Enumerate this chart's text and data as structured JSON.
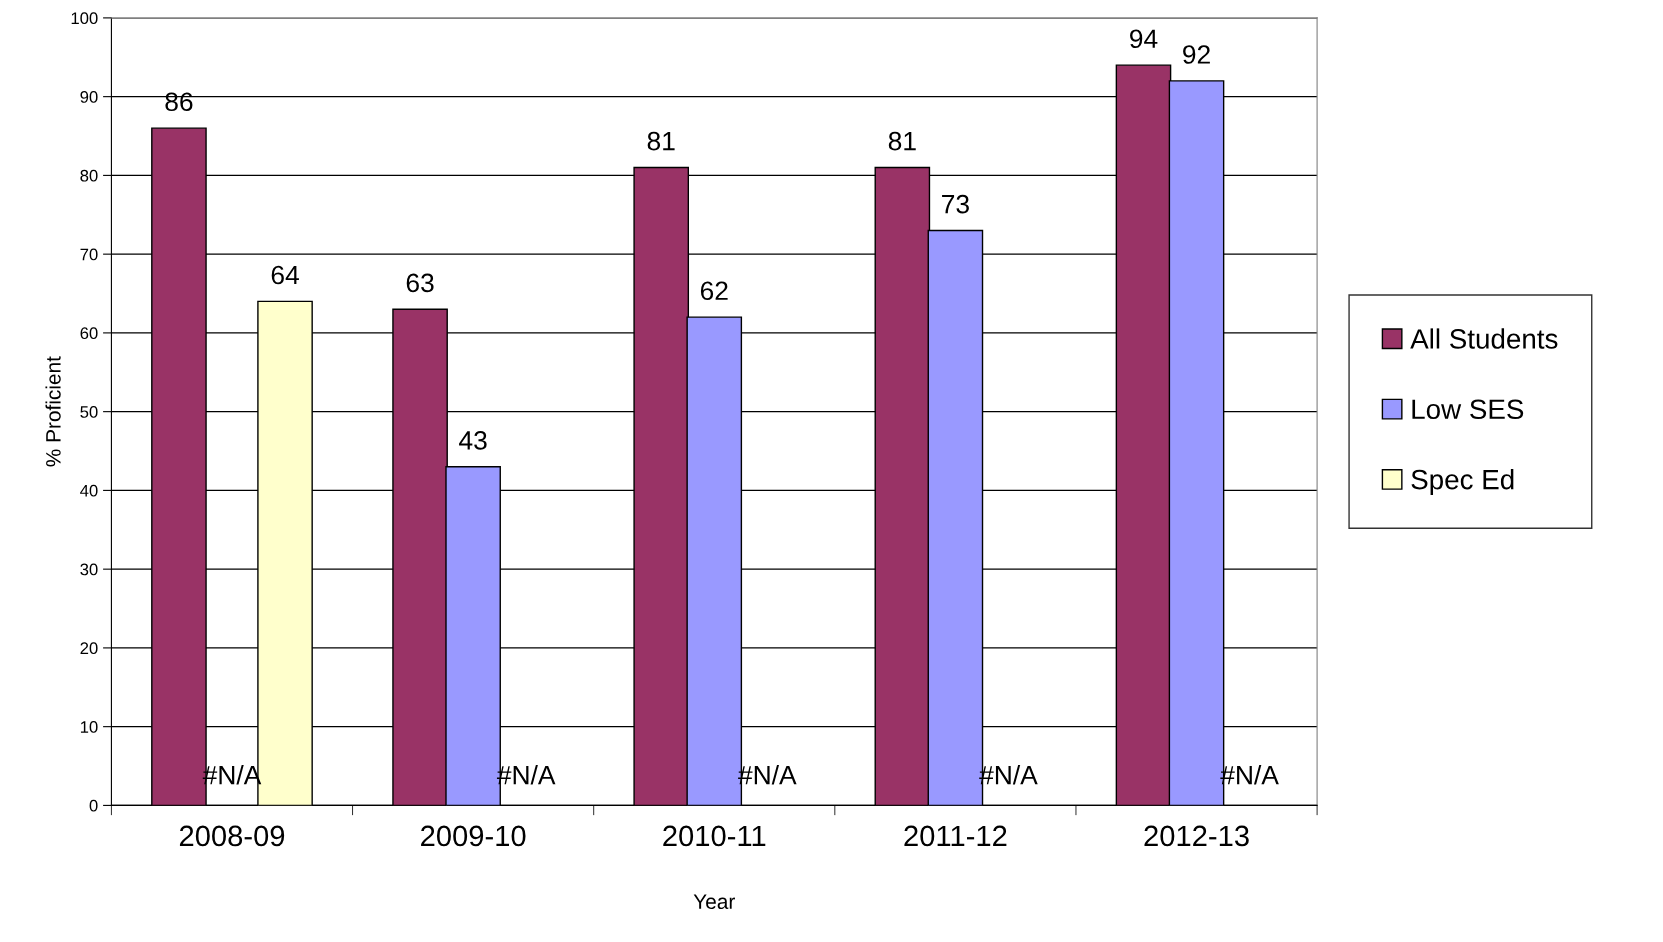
{
  "chart_data": {
    "type": "bar",
    "xlabel": "Year",
    "ylabel": "% Proficient",
    "categories": [
      "2008-09",
      "2009-10",
      "2010-11",
      "2011-12",
      "2012-13"
    ],
    "series": [
      {
        "name": "All Students",
        "color": "#993366",
        "values": [
          86,
          63,
          81,
          81,
          94
        ],
        "value_labels": [
          "86",
          "63",
          "81",
          "81",
          "94"
        ]
      },
      {
        "name": "Low SES",
        "color": "#9999ff",
        "values": [
          null,
          43,
          62,
          73,
          92
        ],
        "value_labels": [
          "#N/A",
          "43",
          "62",
          "73",
          "92"
        ]
      },
      {
        "name": "Spec Ed",
        "color": "#ffffcc",
        "values": [
          64,
          null,
          null,
          null,
          null
        ],
        "value_labels": [
          "64",
          "#N/A",
          "#N/A",
          "#N/A",
          "#N/A"
        ]
      }
    ],
    "ylim": [
      0,
      100
    ],
    "yticks": [
      0,
      10,
      20,
      30,
      40,
      50,
      60,
      70,
      80,
      90,
      100
    ],
    "grid": "y",
    "legend": "right"
  }
}
